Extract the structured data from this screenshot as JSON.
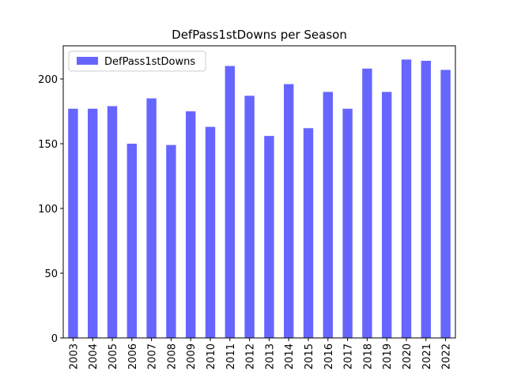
{
  "chart_data": {
    "type": "bar",
    "title": "DefPass1stDowns per Season",
    "categories": [
      "2003",
      "2004",
      "2005",
      "2006",
      "2007",
      "2008",
      "2009",
      "2010",
      "2011",
      "2012",
      "2013",
      "2014",
      "2015",
      "2016",
      "2017",
      "2018",
      "2019",
      "2020",
      "2021",
      "2022"
    ],
    "series": [
      {
        "name": "DefPass1stDowns",
        "color": "#6666ff",
        "values": [
          177,
          177,
          179,
          150,
          185,
          149,
          175,
          163,
          210,
          187,
          156,
          196,
          162,
          190,
          177,
          208,
          190,
          215,
          214,
          207
        ]
      }
    ],
    "ylim": [
      0,
      225.6
    ],
    "yticks": [
      0,
      50,
      100,
      150,
      200
    ],
    "grid": false,
    "legend": "upper-left"
  }
}
